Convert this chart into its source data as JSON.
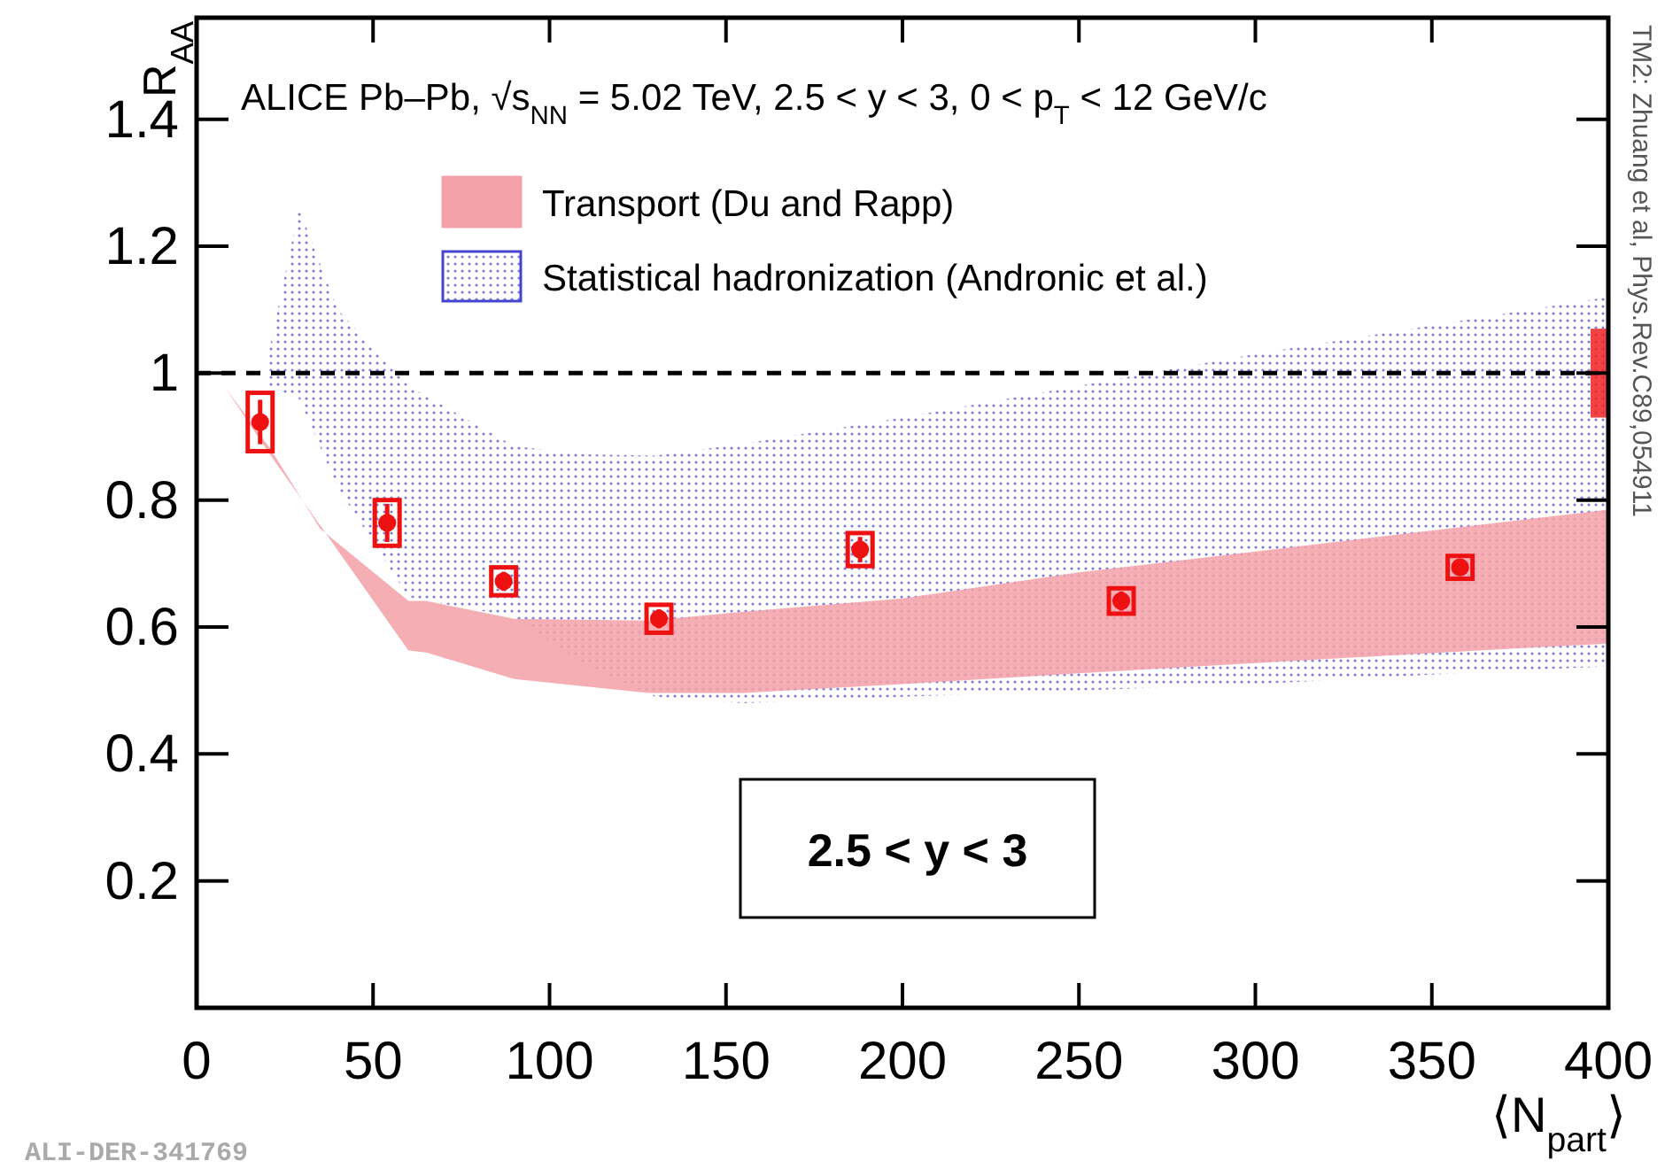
{
  "chart_data": {
    "type": "scatter",
    "title": "ALICE Pb–Pb, √s$_{NN}$ = 5.02 TeV, 2.5 < y < 3, 0 < p$_{T}$ < 12 GeV/c",
    "xlabel": "⟨N$_{part}$⟩",
    "ylabel": "R$_{AA}$",
    "x": [
      18,
      54,
      87,
      131,
      188,
      262,
      358
    ],
    "xlim": [
      0,
      400
    ],
    "xticks": [
      0,
      50,
      100,
      150,
      200,
      250,
      300,
      350,
      400
    ],
    "ylim": [
      0,
      1.56
    ],
    "yticks": [
      0.2,
      0.4,
      0.6,
      0.8,
      1,
      1.2,
      1.4
    ],
    "grid": false,
    "legend": "top",
    "marker": "circle",
    "series": [
      {
        "name": "Statistical hadronization (Andronic et al.)",
        "type": "area",
        "color": "#4444cc",
        "x": [
          20,
          29,
          40,
          60,
          90,
          110,
          130,
          155,
          200,
          250,
          300,
          350,
          400
        ],
        "values": [
          null,
          null,
          null,
          null,
          null,
          null,
          null,
          null,
          null,
          null,
          null,
          null,
          null
        ],
        "lower": [
          0.98,
          0.96,
          0.82,
          0.647,
          0.616,
          0.54,
          0.49,
          0.48,
          0.49,
          0.5,
          0.51,
          0.525,
          0.538
        ],
        "upper": [
          1.02,
          1.26,
          1.1,
          0.98,
          0.885,
          0.872,
          0.87,
          0.889,
          0.93,
          0.98,
          1.03,
          1.075,
          1.12
        ]
      },
      {
        "name": "Transport (Du and Rapp)",
        "type": "area",
        "color": "#f4a0a8",
        "x": [
          8,
          21,
          35,
          60,
          65,
          90,
          128,
          155,
          200,
          250,
          300,
          350,
          400
        ],
        "values": [
          null,
          null,
          null,
          null,
          null,
          null,
          null,
          null,
          null,
          null,
          null,
          null,
          null
        ],
        "lower": [
          0.978,
          0.87,
          0.76,
          0.563,
          0.56,
          0.518,
          0.496,
          0.496,
          0.51,
          0.527,
          0.543,
          0.559,
          0.574
        ],
        "upper": [
          0.978,
          0.88,
          0.755,
          0.641,
          0.641,
          0.613,
          0.61,
          0.624,
          0.645,
          0.686,
          0.719,
          0.752,
          0.785
        ]
      },
      {
        "type": "bar",
        "color": "#ee1111",
        "base": [
          0.877,
          0.728,
          0.65,
          0.591,
          0.696,
          0.621,
          0.676
        ],
        "values": [
          0.092,
          0.072,
          0.044,
          0.044,
          0.052,
          0.04,
          0.036
        ]
      },
      {
        "type": "bar",
        "color": "#ee2222",
        "x": [
          400
        ],
        "base": [
          0.93
        ],
        "values": [
          0.14
        ]
      },
      {
        "color": "#ee1111",
        "values": [
          0.923,
          0.764,
          0.672,
          0.613,
          0.722,
          0.641,
          0.694
        ],
        "errors": [
          0.035,
          0.03,
          0.015,
          0.015,
          0.02,
          0.015,
          0.01
        ]
      }
    ],
    "ref_lines": [
      {
        "axis": "y",
        "value": 1,
        "color": "#000000",
        "line_style": "dashed"
      }
    ],
    "annotations": [
      "2.5 < y < 3",
      "TM2: Zhuang et al, Phys.Rev.C89,054911",
      "ALI-DER-341769"
    ]
  }
}
